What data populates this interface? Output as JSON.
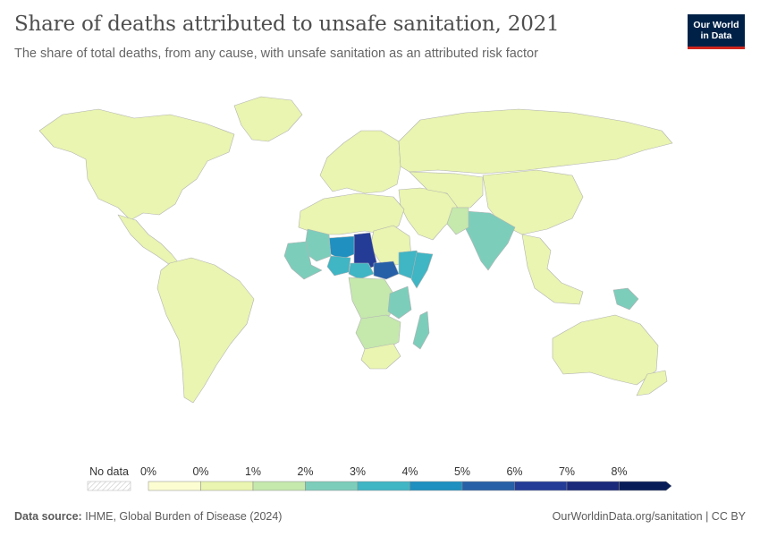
{
  "header": {
    "title": "Share of deaths attributed to unsafe sanitation, 2021",
    "subtitle": "The share of total deaths, from any cause, with unsafe sanitation as an attributed risk factor"
  },
  "logo": {
    "line1": "Our World",
    "line2": "in Data"
  },
  "legend": {
    "no_data_label": "No data",
    "bins": [
      "0%",
      "0%",
      "1%",
      "2%",
      "3%",
      "4%",
      "5%",
      "6%",
      "7%",
      "8%"
    ],
    "colors": [
      "#fcfdd1",
      "#e9f5b0",
      "#c5e8ad",
      "#7dcdbb",
      "#40b5c4",
      "#1f90c0",
      "#2760a7",
      "#243c96",
      "#1b2a7a",
      "#081d58"
    ]
  },
  "footer": {
    "source_label": "Data source:",
    "source_text": "IHME, Global Burden of Disease (2024)",
    "link_text": "OurWorldinData.org/sanitation",
    "license": "CC BY"
  },
  "map_regions": [
    {
      "name": "North America",
      "color": "#e9f5b0"
    },
    {
      "name": "Greenland",
      "color": "#e9f5b0"
    },
    {
      "name": "Central America",
      "color": "#e9f5b0"
    },
    {
      "name": "South America",
      "color": "#e9f5b0"
    },
    {
      "name": "Europe",
      "color": "#e9f5b0"
    },
    {
      "name": "Russia",
      "color": "#e9f5b0"
    },
    {
      "name": "Middle East",
      "color": "#e9f5b0"
    },
    {
      "name": "Central Asia",
      "color": "#e9f5b0"
    },
    {
      "name": "China",
      "color": "#e9f5b0"
    },
    {
      "name": "India",
      "color": "#7dcdbb"
    },
    {
      "name": "Pakistan",
      "color": "#c5e8ad"
    },
    {
      "name": "Southeast Asia",
      "color": "#e9f5b0"
    },
    {
      "name": "Papua New Guinea",
      "color": "#7dcdbb"
    },
    {
      "name": "Australia",
      "color": "#e9f5b0"
    },
    {
      "name": "New Zealand",
      "color": "#e9f5b0"
    },
    {
      "name": "North Africa",
      "color": "#e9f5b0"
    },
    {
      "name": "Sudan",
      "color": "#e9f5b0"
    },
    {
      "name": "Chad",
      "color": "#243c96"
    },
    {
      "name": "Niger",
      "color": "#1f90c0"
    },
    {
      "name": "Mali",
      "color": "#7dcdbb"
    },
    {
      "name": "West Africa",
      "color": "#7dcdbb"
    },
    {
      "name": "Nigeria",
      "color": "#40b5c4"
    },
    {
      "name": "Central African Republic",
      "color": "#40b5c4"
    },
    {
      "name": "South Sudan",
      "color": "#2760a7"
    },
    {
      "name": "Ethiopia",
      "color": "#40b5c4"
    },
    {
      "name": "Somalia",
      "color": "#40b5c4"
    },
    {
      "name": "Central Africa",
      "color": "#c5e8ad"
    },
    {
      "name": "Tanzania",
      "color": "#7dcdbb"
    },
    {
      "name": "Southern Africa",
      "color": "#c5e8ad"
    },
    {
      "name": "South Africa",
      "color": "#e9f5b0"
    },
    {
      "name": "Madagascar",
      "color": "#7dcdbb"
    }
  ]
}
